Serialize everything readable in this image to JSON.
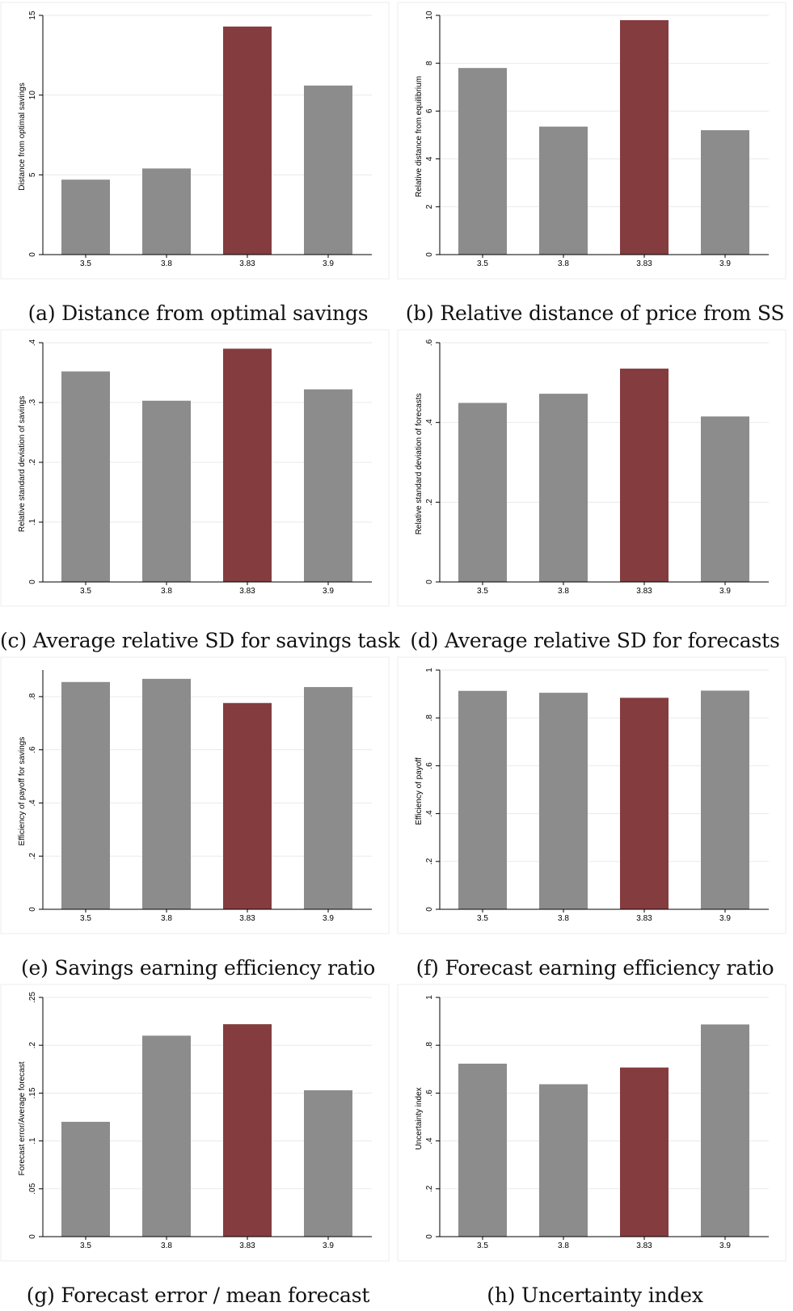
{
  "colors": {
    "bar": "#8c8c8c",
    "highlight": "#843c3f",
    "grid": "#eaeaea",
    "axis": "#000000",
    "panel_border": "#ececec"
  },
  "chart_data": [
    {
      "type": "bar",
      "caption": "(a) Distance from optimal savings",
      "ylabel": "Distance from optimal savings",
      "categories": [
        "3.5",
        "3.8",
        "3.83",
        "3.9"
      ],
      "values": [
        4.7,
        5.4,
        14.3,
        10.6
      ],
      "highlight_index": 2,
      "ylim": [
        0,
        15
      ],
      "yticks": [
        0,
        5,
        10,
        15
      ],
      "ytick_labels": [
        "0",
        "5",
        "10",
        "15"
      ],
      "grid": true
    },
    {
      "type": "bar",
      "caption": "(b) Relative distance of price from SS",
      "ylabel": "Relative distance from equilibrium",
      "categories": [
        "3.5",
        "3.8",
        "3.83",
        "3.9"
      ],
      "values": [
        7.8,
        5.35,
        9.8,
        5.2
      ],
      "highlight_index": 2,
      "ylim": [
        0,
        10
      ],
      "yticks": [
        0,
        2,
        4,
        6,
        8,
        10
      ],
      "ytick_labels": [
        "0",
        "2",
        "4",
        "6",
        "8",
        "10"
      ],
      "grid": true
    },
    {
      "type": "bar",
      "caption": "(c) Average relative SD for savings task",
      "ylabel": "Relative standard deviation of savings",
      "categories": [
        "3.5",
        "3.8",
        "3.83",
        "3.9"
      ],
      "values": [
        0.352,
        0.303,
        0.39,
        0.322
      ],
      "highlight_index": 2,
      "ylim": [
        0,
        0.4
      ],
      "yticks": [
        0,
        0.1,
        0.2,
        0.3,
        0.4
      ],
      "ytick_labels": [
        "0",
        ".1",
        ".2",
        ".3",
        ".4"
      ],
      "grid": true
    },
    {
      "type": "bar",
      "caption": "(d) Average relative SD for forecasts",
      "ylabel": "Relative standard deviation of forecasts",
      "categories": [
        "3.5",
        "3.8",
        "3.83",
        "3.9"
      ],
      "values": [
        0.449,
        0.472,
        0.535,
        0.415
      ],
      "highlight_index": 2,
      "ylim": [
        0,
        0.6
      ],
      "yticks": [
        0,
        0.2,
        0.4,
        0.6
      ],
      "ytick_labels": [
        "0",
        ".2",
        ".4",
        ".6"
      ],
      "grid": true
    },
    {
      "type": "bar",
      "caption": "(e) Savings earning efficiency ratio",
      "ylabel": "Efficiency of payoff for savings",
      "categories": [
        "3.5",
        "3.8",
        "3.83",
        "3.9"
      ],
      "values": [
        0.855,
        0.867,
        0.776,
        0.836
      ],
      "highlight_index": 2,
      "ylim": [
        0,
        0.9
      ],
      "yticks": [
        0,
        0.2,
        0.4,
        0.6,
        0.8
      ],
      "ytick_labels": [
        "0",
        ".2",
        ".4",
        ".6",
        ".8"
      ],
      "grid": true
    },
    {
      "type": "bar",
      "caption": "(f) Forecast earning efficiency ratio",
      "ylabel": "Efficiency of payoff",
      "categories": [
        "3.5",
        "3.8",
        "3.83",
        "3.9"
      ],
      "values": [
        0.913,
        0.905,
        0.884,
        0.914
      ],
      "highlight_index": 2,
      "ylim": [
        0,
        1
      ],
      "yticks": [
        0,
        0.2,
        0.4,
        0.6,
        0.8,
        1
      ],
      "ytick_labels": [
        "0",
        ".2",
        ".4",
        ".6",
        ".8",
        "1"
      ],
      "grid": true
    },
    {
      "type": "bar",
      "caption": "(g) Forecast error / mean forecast",
      "ylabel": "Forecast error/Average forecast",
      "categories": [
        "3.5",
        "3.8",
        "3.83",
        "3.9"
      ],
      "values": [
        0.12,
        0.21,
        0.222,
        0.153
      ],
      "highlight_index": 2,
      "ylim": [
        0,
        0.25
      ],
      "yticks": [
        0,
        0.05,
        0.1,
        0.15,
        0.2,
        0.25
      ],
      "ytick_labels": [
        "0",
        ".05",
        ".1",
        ".15",
        ".2",
        ".25"
      ],
      "grid": true
    },
    {
      "type": "bar",
      "caption": "(h) Uncertainty index",
      "ylabel": "Uncertainty index",
      "categories": [
        "3.5",
        "3.8",
        "3.83",
        "3.9"
      ],
      "values": [
        0.723,
        0.637,
        0.707,
        0.887
      ],
      "highlight_index": 2,
      "ylim": [
        0,
        1
      ],
      "yticks": [
        0,
        0.2,
        0.4,
        0.6,
        0.8,
        1
      ],
      "ytick_labels": [
        "0",
        ".2",
        ".4",
        ".6",
        ".8",
        "1"
      ],
      "grid": true
    }
  ]
}
